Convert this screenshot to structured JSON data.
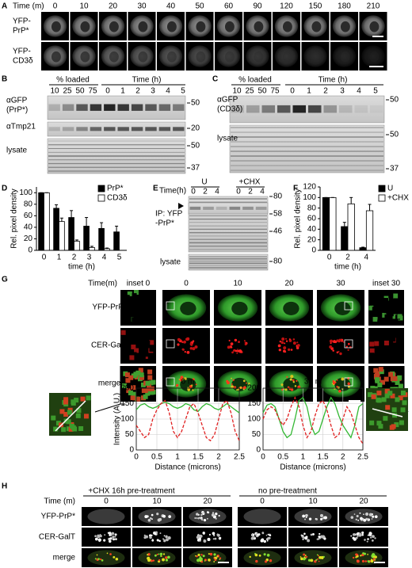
{
  "panels": {
    "A": {
      "label": "A",
      "time_title": "Time (m)",
      "times": [
        0,
        10,
        20,
        30,
        40,
        50,
        60,
        90,
        120,
        150,
        180,
        210
      ],
      "rows": [
        [
          "YFP-",
          "PrP*"
        ],
        [
          "YFP-",
          "CD3δ"
        ]
      ]
    },
    "B": {
      "label": "B",
      "loaded_title": "% loaded",
      "time_title": "Time (h)",
      "loaded": [
        10,
        25,
        50,
        75
      ],
      "times": [
        0,
        1,
        2,
        3,
        4,
        5
      ],
      "rows": [
        "αGFP",
        "(PrP*)",
        "αTmp21",
        "lysate"
      ],
      "markers": [
        50,
        20,
        50,
        37
      ]
    },
    "C": {
      "label": "C",
      "loaded_title": "% loaded",
      "time_title": "Time (h)",
      "loaded": [
        10,
        25,
        50,
        75
      ],
      "times": [
        0,
        1,
        2,
        3,
        4,
        5
      ],
      "rows": [
        "αGFP",
        "(CD3δ)",
        "lysate"
      ],
      "markers": [
        50,
        50,
        37
      ]
    },
    "E": {
      "label": "E",
      "time_title": "Time(h)",
      "groups": [
        "U",
        "+CHX"
      ],
      "times": [
        0,
        2,
        4,
        0,
        2,
        4
      ],
      "ip": [
        "IP: YFP",
        "-PrP*"
      ],
      "markers": [
        80,
        58,
        46,
        80
      ],
      "lysate": "lysate"
    },
    "G": {
      "label": "G",
      "time_title": "Time(m)",
      "columns": [
        "inset 0",
        "0",
        "10",
        "20",
        "30",
        "inset 30"
      ],
      "rows": [
        "YFP-PrP*",
        "CER-GalT",
        "merge"
      ]
    },
    "H": {
      "label": "H",
      "time_title": "Time (m)",
      "groups": [
        "+CHX 16h pre-treatment",
        "no pre-treatment"
      ],
      "times": [
        0,
        10,
        20,
        0,
        10,
        20
      ],
      "rows": [
        "YFP-PrP*",
        "CER-GalT",
        "merge"
      ]
    }
  },
  "chart_data": [
    {
      "type": "bar",
      "label": "D",
      "ylabel": "Rel. pixel density",
      "xlabel": "time (h)",
      "categories": [
        0,
        1,
        2,
        3,
        4,
        5
      ],
      "ylim": [
        0,
        110
      ],
      "yticks": [
        0,
        20,
        40,
        60,
        80,
        100
      ],
      "legend": "top-right",
      "series": [
        {
          "name": "PrP*",
          "color": "#000000",
          "values": [
            100,
            73,
            57,
            42,
            38,
            32
          ],
          "errors": [
            0,
            6,
            12,
            15,
            10,
            10
          ]
        },
        {
          "name": "CD3δ",
          "color": "#ffffff",
          "values": [
            100,
            50,
            16,
            5,
            3,
            null
          ],
          "errors": [
            0,
            6,
            2,
            2,
            1,
            null
          ]
        }
      ]
    },
    {
      "type": "bar",
      "label": "F",
      "ylabel": "Rel. pixel density",
      "xlabel": "time (h)",
      "categories": [
        0,
        2,
        4
      ],
      "ylim": [
        0,
        120
      ],
      "yticks": [
        0,
        20,
        40,
        60,
        80,
        100,
        120
      ],
      "legend": "top-right",
      "series": [
        {
          "name": "U",
          "color": "#000000",
          "values": [
            100,
            45,
            5
          ],
          "errors": [
            0,
            8,
            1
          ]
        },
        {
          "name": "+CHX",
          "color": "#ffffff",
          "values": [
            100,
            88,
            75
          ],
          "errors": [
            0,
            12,
            12
          ]
        }
      ]
    },
    {
      "type": "line",
      "title": "0 m",
      "ylabel": "Intensity (A.U.)",
      "xlabel": "Distance (microns)",
      "grid": true,
      "x": [
        0,
        0.1,
        0.2,
        0.3,
        0.4,
        0.5,
        0.6,
        0.7,
        0.8,
        0.9,
        1,
        1.1,
        1.2,
        1.3,
        1.4,
        1.5,
        1.6,
        1.7,
        1.8,
        1.9,
        2,
        2.1,
        2.2,
        2.3,
        2.4,
        2.5
      ],
      "xlim": [
        0,
        2.5
      ],
      "xticks": [
        0,
        0.5,
        1,
        1.5,
        2,
        2.5
      ],
      "ylim": [
        0,
        200
      ],
      "yticks": [
        0,
        50,
        100,
        150,
        200
      ],
      "series": [
        {
          "color": "#33b833",
          "dash": false,
          "values": [
            130,
            145,
            150,
            140,
            135,
            140,
            150,
            155,
            150,
            140,
            135,
            140,
            150,
            145,
            130,
            125,
            140,
            150,
            145,
            135,
            130,
            140,
            150,
            140,
            130,
            120
          ]
        },
        {
          "color": "#e02020",
          "dash": true,
          "values": [
            80,
            60,
            40,
            50,
            100,
            130,
            150,
            160,
            120,
            60,
            40,
            60,
            100,
            140,
            150,
            120,
            80,
            40,
            30,
            50,
            100,
            150,
            160,
            120,
            60,
            30
          ]
        }
      ]
    },
    {
      "type": "line",
      "title": "30 m",
      "xlabel": "Distance (microns)",
      "grid": true,
      "x": [
        0,
        0.1,
        0.2,
        0.3,
        0.4,
        0.5,
        0.6,
        0.7,
        0.8,
        0.9,
        1,
        1.1,
        1.2,
        1.3,
        1.4,
        1.5,
        1.6,
        1.7,
        1.8,
        1.9,
        2,
        2.1,
        2.2,
        2.3,
        2.4,
        2.5
      ],
      "xlim": [
        0,
        2.5
      ],
      "xticks": [
        0,
        0.5,
        1,
        1.5,
        2,
        2.5
      ],
      "ylim": [
        0,
        200
      ],
      "yticks": [
        0,
        50,
        100,
        150,
        200
      ],
      "series": [
        {
          "color": "#33b833",
          "dash": false,
          "values": [
            120,
            145,
            150,
            140,
            100,
            60,
            40,
            50,
            100,
            160,
            170,
            140,
            80,
            50,
            60,
            100,
            140,
            170,
            150,
            110,
            80,
            60,
            40,
            80,
            140,
            150
          ]
        },
        {
          "color": "#e02020",
          "dash": true,
          "values": [
            100,
            130,
            140,
            130,
            100,
            80,
            100,
            140,
            170,
            140,
            80,
            40,
            60,
            110,
            150,
            160,
            130,
            80,
            40,
            50,
            100,
            140,
            120,
            80,
            40,
            20
          ]
        }
      ]
    }
  ]
}
